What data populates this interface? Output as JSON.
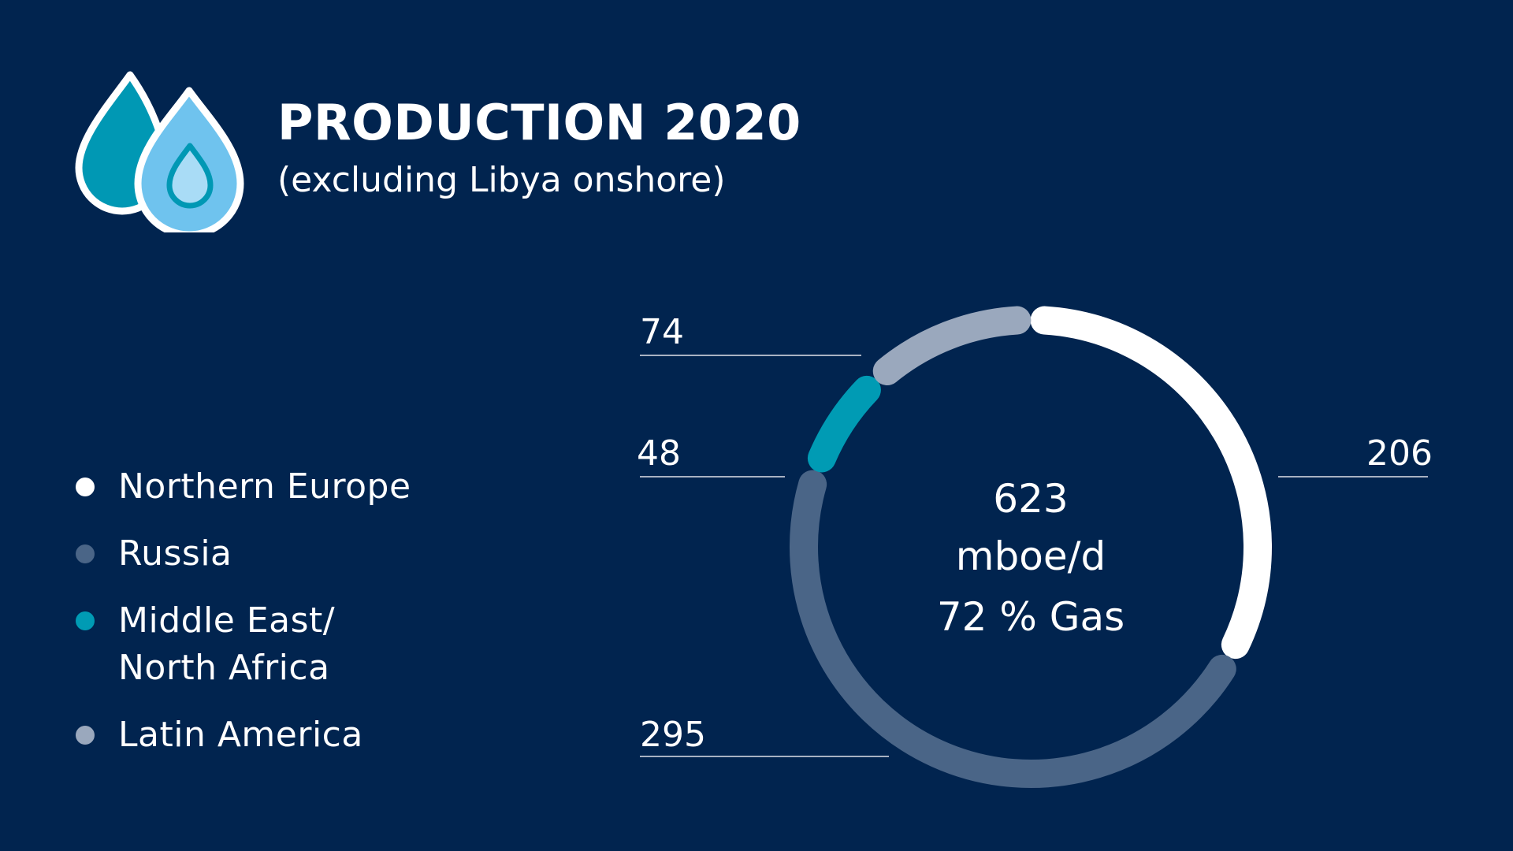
{
  "header": {
    "title": "PRODUCTION 2020",
    "subtitle": "(excluding Libya onshore)",
    "icon": "oil-gas-drops-icon"
  },
  "center": {
    "value": "623",
    "unit": "mboe/d",
    "gas_share": "72 % Gas"
  },
  "colors": {
    "background": "#01244f",
    "northern_europe": "#ffffff",
    "russia": "#4a6587",
    "middle_east": "#009bb4",
    "latin_america": "#9aa8bd",
    "leader_line": "#a8b2c2"
  },
  "chart_data": {
    "type": "donut",
    "title": "PRODUCTION 2020",
    "subtitle": "(excluding Libya onshore)",
    "unit": "mboe/d",
    "total": 623,
    "gas_share_percent": 72,
    "legend_position": "left",
    "series": [
      {
        "name": "Northern Europe",
        "value": 206,
        "label": "206",
        "color": "#ffffff"
      },
      {
        "name": "Russia",
        "value": 295,
        "label": "295",
        "color": "#4a6587"
      },
      {
        "name": "Middle East/\nNorth Africa",
        "value": 48,
        "label": "48",
        "color": "#009bb4"
      },
      {
        "name": "Latin America",
        "value": 74,
        "label": "74",
        "color": "#9aa8bd"
      }
    ]
  }
}
